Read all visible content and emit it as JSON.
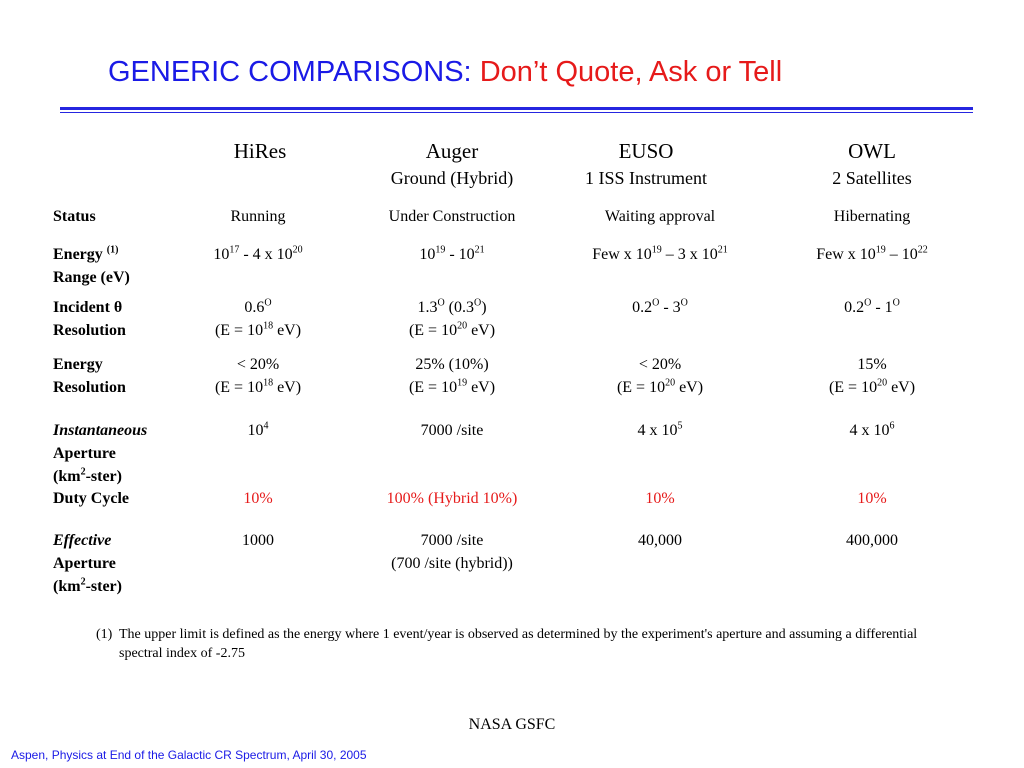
{
  "title": {
    "main": "GENERIC COMPARISONS:",
    "highlight": "Don’t Quote, Ask or Tell"
  },
  "columns": [
    {
      "name": "HiRes",
      "sub": ""
    },
    {
      "name": "Auger",
      "sub": "Ground (Hybrid)"
    },
    {
      "name": "EUSO",
      "sub": "1 ISS Instrument"
    },
    {
      "name": "OWL",
      "sub": "2 Satellites"
    }
  ],
  "rows": {
    "status": {
      "label": "Status",
      "values": [
        "Running",
        "Under Construction",
        "Waiting approval",
        "Hibernating"
      ]
    },
    "energy_range": {
      "label1": "Energy",
      "label_sup": "(1)",
      "label2": "Range (eV)",
      "hires": {
        "base1": "10",
        "exp1": "17",
        "mid": " - 4 x 10",
        "exp2": "20"
      },
      "auger": {
        "base1": "10",
        "exp1": "19",
        "mid": " - 10",
        "exp2": "21"
      },
      "euso": {
        "base1": "Few x 10",
        "exp1": "19",
        "mid": " – 3 x 10",
        "exp2": "21"
      },
      "owl": {
        "base1": "Few x 10",
        "exp1": "19",
        "mid": " – 10",
        "exp2": "22"
      }
    },
    "incident": {
      "label1": "Incident θ",
      "label2": "Resolution",
      "hires": {
        "v": "0.6",
        "deg": "O",
        "cond": "(E = 10",
        "cexp": "18",
        "cunit": " eV)"
      },
      "auger": {
        "v": "1.3",
        "deg": "O",
        "v2": " (0.3",
        "deg2": "O",
        "close": ")",
        "cond": "(E = 10",
        "cexp": "20",
        "cunit": " eV)"
      },
      "euso": {
        "v": "0.2",
        "deg": "O",
        "v2": " - 3",
        "deg2": "O"
      },
      "owl": {
        "v": "0.2",
        "deg": "O",
        "v2": " - 1",
        "deg2": "O"
      }
    },
    "energy_res": {
      "label1": "Energy",
      "label2": "Resolution",
      "hires": {
        "v": "< 20%",
        "cond": "(E = 10",
        "cexp": "18",
        "cunit": " eV)"
      },
      "auger": {
        "v": "25% (10%)",
        "cond": "(E = 10",
        "cexp": "19",
        "cunit": " eV)"
      },
      "euso": {
        "v": "< 20%",
        "cond": "(E = 10",
        "cexp": "20",
        "cunit": " eV)"
      },
      "owl": {
        "v": "15%",
        "cond": "(E = 10",
        "cexp": "20",
        "cunit": " eV)"
      }
    },
    "inst_aperture": {
      "label1": "Instantaneous",
      "label2": "Aperture",
      "label3a": "(km",
      "label3sup": "2",
      "label3b": "-ster)",
      "hires": {
        "base": "10",
        "exp": "4"
      },
      "auger": {
        "v": "7000 /site"
      },
      "euso": {
        "base": "4 x 10",
        "exp": "5"
      },
      "owl": {
        "base": "4 x 10",
        "exp": "6"
      }
    },
    "duty": {
      "label": "Duty Cycle",
      "values": [
        "10%",
        "100% (Hybrid 10%)",
        "10%",
        "10%"
      ]
    },
    "eff_aperture": {
      "label1": "Effective",
      "label2": "Aperture",
      "label3a": "(km",
      "label3sup": "2",
      "label3b": "-ster)",
      "values": [
        "1000",
        "7000 /site",
        "40,000",
        "400,000"
      ],
      "auger_sub": "(700 /site (hybrid))"
    }
  },
  "note": {
    "num": "(1)",
    "text": "The upper limit is defined as the energy where 1 event/year is observed as determined by the experiment's aperture and assuming a differential spectral index of -2.75"
  },
  "center_footer": "NASA GSFC",
  "footer": "Aspen, Physics at End of the Galactic CR Spectrum, April 30, 2005",
  "colors": {
    "title_blue": "#1a1ae6",
    "title_red": "#e61a1a",
    "rule_blue": "#2626e0"
  }
}
